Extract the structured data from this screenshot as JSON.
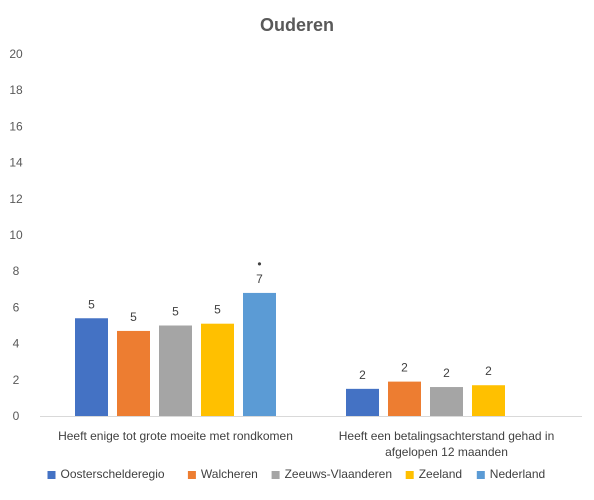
{
  "chart_data": {
    "type": "bar",
    "title": "Ouderen",
    "xlabel": "",
    "ylabel": "",
    "ylim": [
      0,
      20
    ],
    "yticks": [
      0,
      2,
      4,
      6,
      8,
      10,
      12,
      14,
      16,
      18,
      20
    ],
    "grid": false,
    "legend_position": "bottom",
    "categories": [
      [
        "Heeft enige tot grote moeite met rondkomen"
      ],
      [
        "Heeft een betalingsachterstand gehad in",
        "afgelopen 12 maanden"
      ]
    ],
    "series": [
      {
        "name": "Oosterschelderegio",
        "color": "#4472C4",
        "values": [
          5.4,
          1.5
        ],
        "labels": [
          "5",
          "2"
        ]
      },
      {
        "name": "Walcheren",
        "color": "#ED7D31",
        "values": [
          4.7,
          1.9
        ],
        "labels": [
          "5",
          "2"
        ]
      },
      {
        "name": "Zeeuws-Vlaanderen",
        "color": "#A5A5A5",
        "values": [
          5.0,
          1.6
        ],
        "labels": [
          "5",
          "2"
        ]
      },
      {
        "name": "Zeeland",
        "color": "#FFC000",
        "values": [
          5.1,
          1.7
        ],
        "labels": [
          "5",
          "2"
        ]
      },
      {
        "name": "Nederland",
        "color": "#5B9BD5",
        "values": [
          6.8,
          null
        ],
        "labels": [
          "7",
          ""
        ],
        "markers": [
          "•",
          ""
        ]
      }
    ]
  }
}
